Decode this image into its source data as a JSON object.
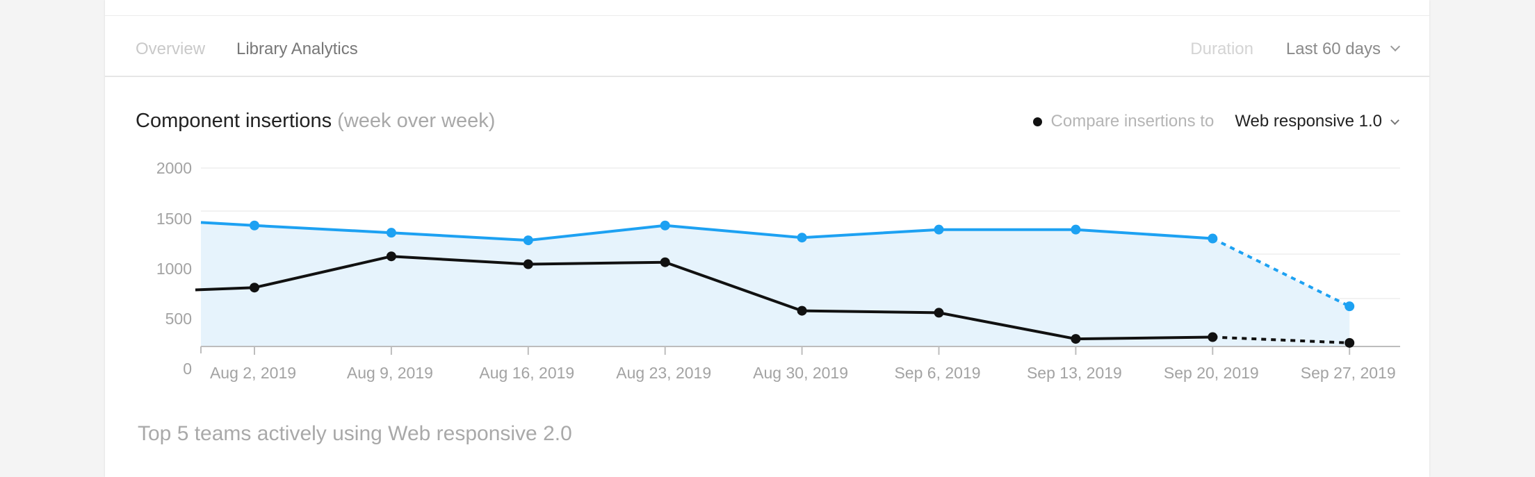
{
  "tabs": {
    "overview": "Overview",
    "library_analytics": "Library Analytics"
  },
  "duration": {
    "label": "Duration",
    "value": "Last 60 days"
  },
  "chart_header": {
    "title": "Component insertions",
    "subtitle": "(week over week)"
  },
  "compare": {
    "label": "Compare insertions to",
    "value": "Web responsive 1.0"
  },
  "bottom_heading": "Top 5 teams actively using Web responsive 2.0",
  "colors": {
    "primary_series": "#1da1f2",
    "primary_fill": "#e6f3fc",
    "comparison_series": "#111111"
  },
  "chart_data": {
    "type": "line",
    "title": "Component insertions",
    "subtitle": "(week over week)",
    "xlabel": "",
    "ylabel": "",
    "ylim": [
      0,
      2000
    ],
    "yticks": [
      "2000",
      "1500",
      "1000",
      "500",
      "0"
    ],
    "categories": [
      "Aug 2, 2019",
      "Aug 9, 2019",
      "Aug 16, 2019",
      "Aug 23, 2019",
      "Aug 30, 2019",
      "Sep 6, 2019",
      "Sep 13, 2019",
      "Sep 20, 2019",
      "Sep 27, 2019"
    ],
    "grid": true,
    "series": [
      {
        "values": [
          1356,
          1275,
          1190,
          1356,
          1220,
          1310,
          1310,
          1210,
          450
        ],
        "start_value": 1390,
        "fill": true,
        "dashed_last_segment": true,
        "color": "#1da1f2"
      },
      {
        "values": [
          660,
          1010,
          922,
          944,
          400,
          378,
          85,
          105,
          40
        ],
        "start_value": 634,
        "fill": false,
        "dashed_last_segment": true,
        "color": "#111111"
      }
    ]
  }
}
